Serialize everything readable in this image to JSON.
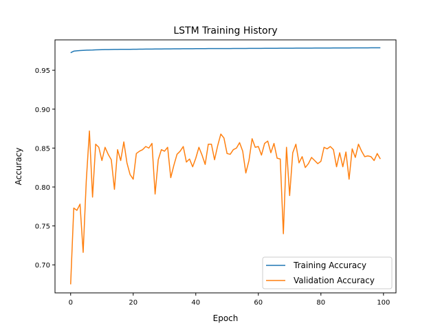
{
  "chart_data": {
    "type": "line",
    "title": "LSTM Training History",
    "xlabel": "Epoch",
    "ylabel": "Accuracy",
    "xlim": [
      -5,
      104
    ],
    "ylim": [
      0.664,
      0.989
    ],
    "xticks": [
      0,
      20,
      40,
      60,
      80,
      100
    ],
    "yticks": [
      0.7,
      0.75,
      0.8,
      0.85,
      0.9,
      0.95
    ],
    "grid": false,
    "legend_position": "lower-right",
    "series": [
      {
        "name": "Training Accuracy",
        "color": "#1f77b4",
        "x": [
          0,
          1,
          2,
          3,
          4,
          5,
          6,
          7,
          8,
          9,
          10,
          11,
          12,
          13,
          14,
          15,
          16,
          17,
          18,
          19,
          20,
          21,
          22,
          23,
          24,
          25,
          26,
          27,
          28,
          29,
          30,
          31,
          32,
          33,
          34,
          35,
          36,
          37,
          38,
          39,
          40,
          41,
          42,
          43,
          44,
          45,
          46,
          47,
          48,
          49,
          50,
          51,
          52,
          53,
          54,
          55,
          56,
          57,
          58,
          59,
          60,
          61,
          62,
          63,
          64,
          65,
          66,
          67,
          68,
          69,
          70,
          71,
          72,
          73,
          74,
          75,
          76,
          77,
          78,
          79,
          80,
          81,
          82,
          83,
          84,
          85,
          86,
          87,
          88,
          89,
          90,
          91,
          92,
          93,
          94,
          95,
          96,
          97,
          98,
          99
        ],
        "values": [
          0.9725,
          0.9745,
          0.975,
          0.9753,
          0.9755,
          0.9757,
          0.9759,
          0.976,
          0.9762,
          0.9763,
          0.9764,
          0.9765,
          0.9765,
          0.9766,
          0.9767,
          0.9767,
          0.9768,
          0.9768,
          0.9769,
          0.9769,
          0.977,
          0.977,
          0.9771,
          0.9771,
          0.9772,
          0.9772,
          0.9772,
          0.9773,
          0.9773,
          0.9773,
          0.9774,
          0.9774,
          0.9774,
          0.9775,
          0.9775,
          0.9775,
          0.9776,
          0.9776,
          0.9776,
          0.9776,
          0.9777,
          0.9777,
          0.9777,
          0.9777,
          0.9778,
          0.9778,
          0.9778,
          0.9778,
          0.9779,
          0.9779,
          0.9779,
          0.9779,
          0.978,
          0.978,
          0.978,
          0.978,
          0.978,
          0.9781,
          0.9781,
          0.9781,
          0.9781,
          0.9781,
          0.9782,
          0.9782,
          0.9782,
          0.9782,
          0.9782,
          0.9783,
          0.9783,
          0.9783,
          0.9783,
          0.9783,
          0.9784,
          0.9784,
          0.9784,
          0.9784,
          0.9784,
          0.9784,
          0.9785,
          0.9785,
          0.9785,
          0.9785,
          0.9785,
          0.9785,
          0.9786,
          0.9786,
          0.9786,
          0.9786,
          0.9786,
          0.9786,
          0.9787,
          0.9787,
          0.9787,
          0.9787,
          0.9787,
          0.9787,
          0.9788,
          0.9788,
          0.9788,
          0.9788
        ]
      },
      {
        "name": "Validation Accuracy",
        "color": "#ff7f0e",
        "x": [
          0,
          1,
          2,
          3,
          4,
          5,
          6,
          7,
          8,
          9,
          10,
          11,
          12,
          13,
          14,
          15,
          16,
          17,
          18,
          19,
          20,
          21,
          22,
          23,
          24,
          25,
          26,
          27,
          28,
          29,
          30,
          31,
          32,
          33,
          34,
          35,
          36,
          37,
          38,
          39,
          40,
          41,
          42,
          43,
          44,
          45,
          46,
          47,
          48,
          49,
          50,
          51,
          52,
          53,
          54,
          55,
          56,
          57,
          58,
          59,
          60,
          61,
          62,
          63,
          64,
          65,
          66,
          67,
          68,
          69,
          70,
          71,
          72,
          73,
          74,
          75,
          76,
          77,
          78,
          79,
          80,
          81,
          82,
          83,
          84,
          85,
          86,
          87,
          88,
          89,
          90,
          91,
          92,
          93,
          94,
          95,
          96,
          97,
          98,
          99
        ],
        "values": [
          0.675,
          0.773,
          0.77,
          0.778,
          0.716,
          0.808,
          0.872,
          0.787,
          0.855,
          0.851,
          0.834,
          0.851,
          0.842,
          0.835,
          0.797,
          0.848,
          0.834,
          0.858,
          0.831,
          0.816,
          0.81,
          0.843,
          0.846,
          0.848,
          0.852,
          0.85,
          0.856,
          0.791,
          0.835,
          0.848,
          0.846,
          0.851,
          0.812,
          0.828,
          0.842,
          0.846,
          0.852,
          0.832,
          0.836,
          0.826,
          0.837,
          0.851,
          0.841,
          0.829,
          0.855,
          0.855,
          0.835,
          0.853,
          0.868,
          0.863,
          0.843,
          0.842,
          0.848,
          0.85,
          0.857,
          0.846,
          0.818,
          0.834,
          0.862,
          0.851,
          0.852,
          0.841,
          0.856,
          0.859,
          0.844,
          0.856,
          0.837,
          0.836,
          0.74,
          0.851,
          0.789,
          0.844,
          0.855,
          0.831,
          0.839,
          0.825,
          0.83,
          0.838,
          0.834,
          0.83,
          0.833,
          0.851,
          0.849,
          0.852,
          0.848,
          0.826,
          0.844,
          0.826,
          0.845,
          0.81,
          0.849,
          0.838,
          0.855,
          0.846,
          0.839,
          0.84,
          0.839,
          0.834,
          0.843,
          0.836
        ]
      }
    ]
  }
}
